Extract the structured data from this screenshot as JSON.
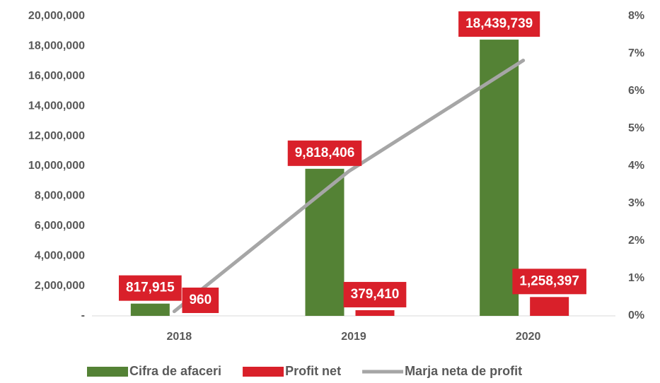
{
  "chart_data": {
    "type": "bar",
    "categories": [
      "2018",
      "2019",
      "2020"
    ],
    "series": [
      {
        "name": "Cifra de afaceri",
        "color": "#548235",
        "values": [
          817915,
          9818406,
          18439739
        ],
        "value_labels": [
          "817,915",
          "9,818,406",
          "18,439,739"
        ]
      },
      {
        "name": "Profit net",
        "color": "#d9202a",
        "values": [
          960,
          379410,
          1258397
        ],
        "value_labels": [
          "960",
          "379,410",
          "1,258,397"
        ]
      },
      {
        "name": "Marja neta de profit",
        "color": "#a6a6a6",
        "type": "line",
        "axis": "y2",
        "values": [
          0.12,
          3.86,
          6.82
        ]
      }
    ],
    "ylim": [
      0,
      20000000
    ],
    "yticks": [
      {
        "value": 0,
        "label": "-"
      },
      {
        "value": 2000000,
        "label": "2,000,000"
      },
      {
        "value": 4000000,
        "label": "4,000,000"
      },
      {
        "value": 6000000,
        "label": "6,000,000"
      },
      {
        "value": 8000000,
        "label": "8,000,000"
      },
      {
        "value": 10000000,
        "label": "10,000,000"
      },
      {
        "value": 12000000,
        "label": "12,000,000"
      },
      {
        "value": 14000000,
        "label": "14,000,000"
      },
      {
        "value": 16000000,
        "label": "16,000,000"
      },
      {
        "value": 18000000,
        "label": "18,000,000"
      },
      {
        "value": 20000000,
        "label": "20,000,000"
      }
    ],
    "y2lim": [
      0,
      8
    ],
    "y2ticks": [
      {
        "value": 0,
        "label": "0%"
      },
      {
        "value": 1,
        "label": "1%"
      },
      {
        "value": 2,
        "label": "2%"
      },
      {
        "value": 3,
        "label": "3%"
      },
      {
        "value": 4,
        "label": "4%"
      },
      {
        "value": 5,
        "label": "5%"
      },
      {
        "value": 6,
        "label": "6%"
      },
      {
        "value": 7,
        "label": "7%"
      },
      {
        "value": 8,
        "label": "8%"
      }
    ],
    "label_box_color": "#d9202a",
    "legend": "bottom"
  }
}
